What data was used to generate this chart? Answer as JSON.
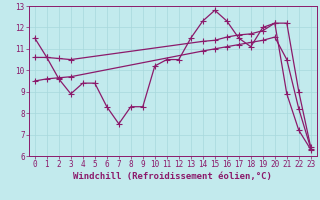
{
  "xlabel": "Windchill (Refroidissement éolien,°C)",
  "bg_color": "#c2eaed",
  "line_color": "#8b1a6b",
  "grid_color": "#a8d8dc",
  "xlim": [
    -0.5,
    23.5
  ],
  "ylim": [
    6,
    13
  ],
  "xticks": [
    0,
    1,
    2,
    3,
    4,
    5,
    6,
    7,
    8,
    9,
    10,
    11,
    12,
    13,
    14,
    15,
    16,
    17,
    18,
    19,
    20,
    21,
    22,
    23
  ],
  "yticks": [
    6,
    7,
    8,
    9,
    10,
    11,
    12,
    13
  ],
  "series1_x": [
    0,
    1,
    2,
    3,
    4,
    5,
    6,
    7,
    8,
    9,
    10,
    11,
    12,
    13,
    14,
    15,
    16,
    17,
    18,
    19,
    20,
    21,
    22,
    23
  ],
  "series1_y": [
    11.5,
    10.6,
    9.6,
    8.9,
    9.4,
    9.4,
    8.3,
    7.5,
    8.3,
    8.3,
    10.2,
    10.5,
    10.5,
    11.5,
    12.3,
    12.8,
    12.3,
    11.5,
    11.1,
    12.0,
    12.2,
    8.9,
    7.2,
    6.3
  ],
  "series2_x": [
    0,
    1,
    2,
    3,
    14,
    15,
    16,
    17,
    18,
    19,
    20,
    21,
    22,
    23
  ],
  "series2_y": [
    10.6,
    10.6,
    10.55,
    10.5,
    11.35,
    11.4,
    11.55,
    11.65,
    11.7,
    11.85,
    12.2,
    12.2,
    9.0,
    6.4
  ],
  "series3_x": [
    0,
    1,
    2,
    3,
    14,
    15,
    16,
    17,
    18,
    19,
    20,
    21,
    22,
    23
  ],
  "series3_y": [
    9.5,
    9.6,
    9.65,
    9.7,
    10.9,
    11.0,
    11.1,
    11.2,
    11.3,
    11.4,
    11.55,
    10.5,
    8.2,
    6.35
  ],
  "marker": "+",
  "markersize": 4,
  "linewidth": 0.9,
  "tick_fontsize": 5.5,
  "label_fontsize": 6.5
}
